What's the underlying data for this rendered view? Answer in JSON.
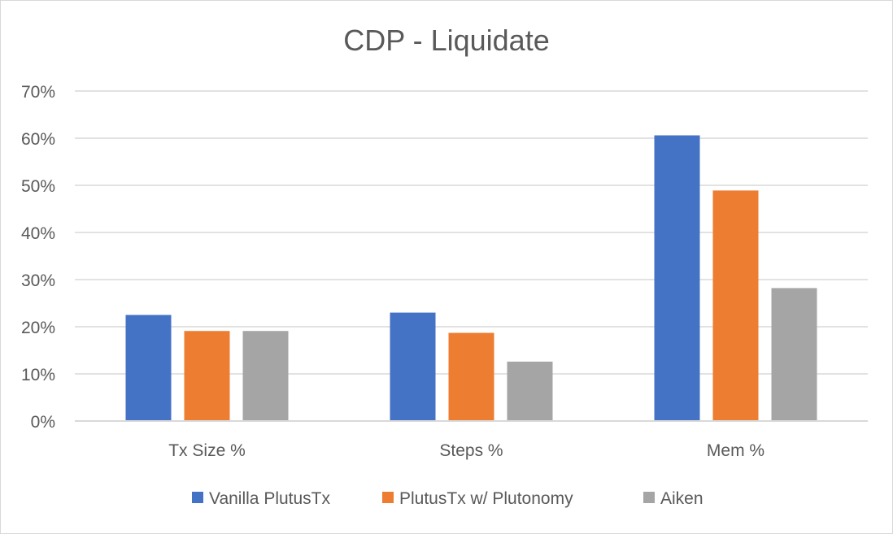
{
  "chart_data": {
    "type": "bar",
    "title": "CDP - Liquidate",
    "xlabel": "",
    "ylabel": "",
    "categories": [
      "Tx Size %",
      "Steps %",
      "Mem %"
    ],
    "series": [
      {
        "name": "Vanilla PlutusTx",
        "color": "#4472c4",
        "values": [
          22.5,
          23.0,
          60.6
        ]
      },
      {
        "name": "PlutusTx w/ Plutonomy",
        "color": "#ed7d31",
        "values": [
          19.1,
          18.7,
          48.9
        ]
      },
      {
        "name": "Aiken",
        "color": "#a5a5a5",
        "values": [
          19.1,
          12.6,
          28.2
        ]
      }
    ],
    "ylim": [
      0,
      70
    ],
    "yticks": [
      0,
      10,
      20,
      30,
      40,
      50,
      60,
      70
    ],
    "ytick_labels": [
      "0%",
      "10%",
      "20%",
      "30%",
      "40%",
      "50%",
      "60%",
      "70%"
    ],
    "grid": true,
    "legend_position": "bottom"
  }
}
